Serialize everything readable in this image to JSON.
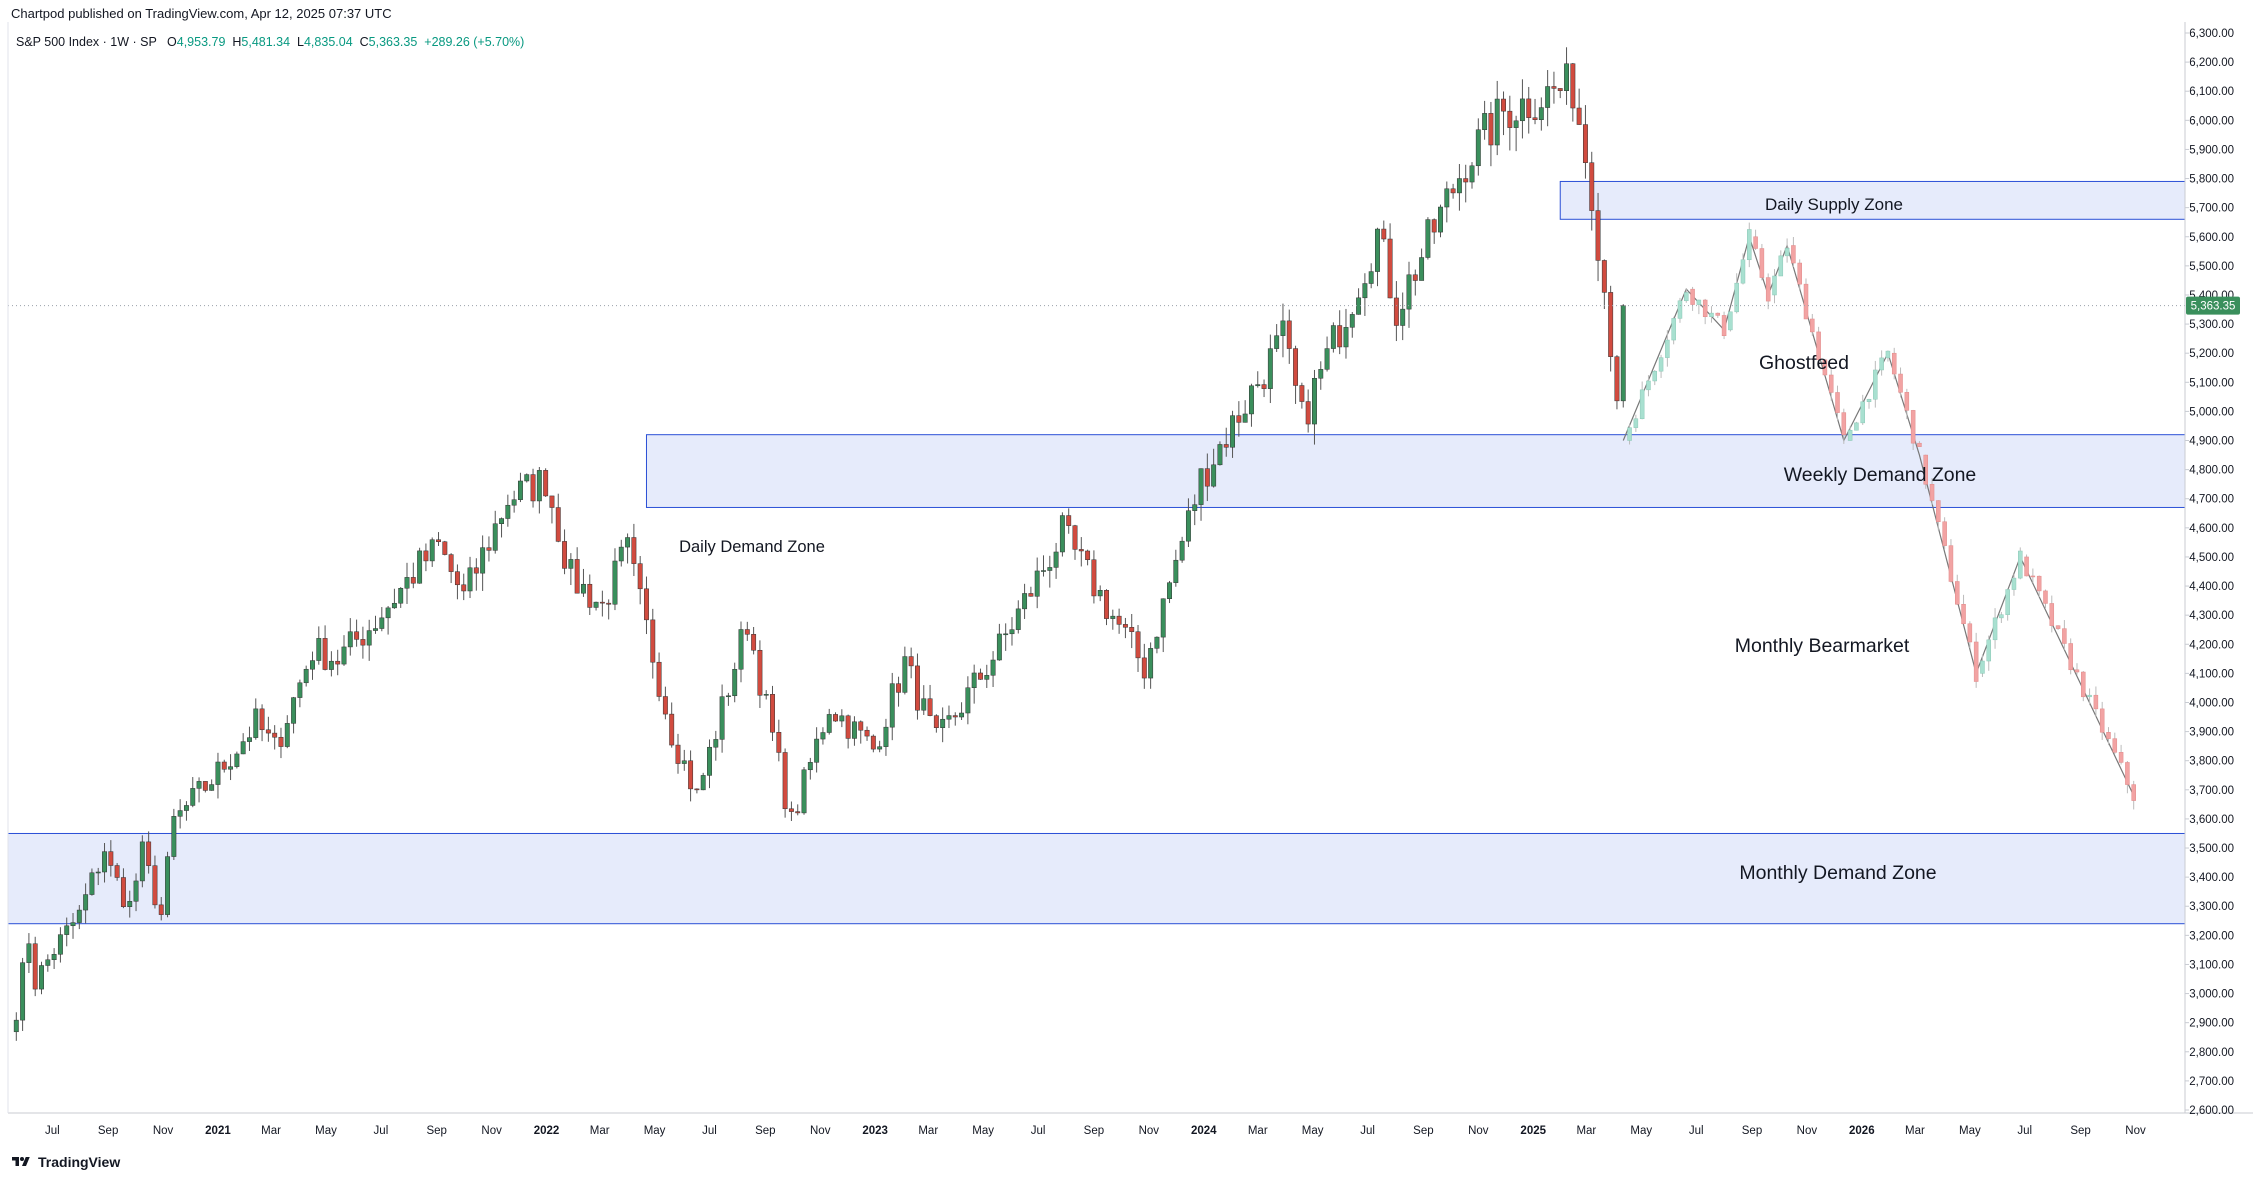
{
  "header": {
    "publisher": "Chartpod published on TradingView.com, Apr 12, 2025 07:37 UTC",
    "symbol": "S&P 500 Index · 1W · SP",
    "open_label": "O",
    "open": "4,953.79",
    "high_label": "H",
    "high": "5,481.34",
    "low_label": "L",
    "low": "4,835.04",
    "close_label": "C",
    "close": "5,363.35",
    "change": "+289.26 (+5.70%)"
  },
  "footer": {
    "brand": "TradingView"
  },
  "colors": {
    "up": "#26a69a",
    "up_body": "#3a8f5c",
    "down": "#d14b3f",
    "zone_fill": "#e6ebfb",
    "zone_stroke": "#2a4fd6",
    "price_tag": "#3a8f5c",
    "ghost_up": "#a8e0d0",
    "ghost_down": "#f2a3a3"
  },
  "chart_data": {
    "type": "candlestick",
    "title": "",
    "series_name": "S&P 500 Index · 1W · SP",
    "ylim": [
      2600,
      6300
    ],
    "y_ticks": [
      "6,300.00",
      "6,200.00",
      "6,100.00",
      "6,000.00",
      "5,900.00",
      "5,800.00",
      "5,700.00",
      "5,600.00",
      "5,500.00",
      "5,400.00",
      "5,300.00",
      "5,200.00",
      "5,100.00",
      "5,000.00",
      "4,900.00",
      "4,800.00",
      "4,700.00",
      "4,600.00",
      "4,500.00",
      "4,400.00",
      "4,300.00",
      "4,200.00",
      "4,100.00",
      "4,000.00",
      "3,900.00",
      "3,800.00",
      "3,700.00",
      "3,600.00",
      "3,500.00",
      "3,400.00",
      "3,300.00",
      "3,200.00",
      "3,100.00",
      "3,000.00",
      "2,900.00",
      "2,800.00",
      "2,700.00",
      "2,600.00"
    ],
    "y_tick_values": [
      6300,
      6200,
      6100,
      6000,
      5900,
      5800,
      5700,
      5600,
      5500,
      5400,
      5300,
      5200,
      5100,
      5000,
      4900,
      4800,
      4700,
      4600,
      4500,
      4400,
      4300,
      4200,
      4100,
      4000,
      3900,
      3800,
      3700,
      3600,
      3500,
      3400,
      3300,
      3200,
      3100,
      3000,
      2900,
      2800,
      2700,
      2600
    ],
    "x_ticks": [
      "Jul",
      "Sep",
      "Nov",
      "2021",
      "Mar",
      "May",
      "Jul",
      "Sep",
      "Nov",
      "2022",
      "Mar",
      "May",
      "Jul",
      "Sep",
      "Nov",
      "2023",
      "Mar",
      "May",
      "Jul",
      "Sep",
      "Nov",
      "2024",
      "Mar",
      "May",
      "Jul",
      "Sep",
      "Nov",
      "2025",
      "Mar",
      "May",
      "Jul",
      "Sep",
      "Nov",
      "2026",
      "Mar",
      "May",
      "Jul",
      "Sep",
      "Nov"
    ],
    "x_ticks_bold": [
      "2021",
      "2022",
      "2023",
      "2024",
      "2025",
      "2026"
    ],
    "last_price": "5,363.35",
    "last_value": 5363.35,
    "weekly_ohlc_keypoints": [
      [
        "2020-05-22",
        2950
      ],
      [
        "2020-06-05",
        3190
      ],
      [
        "2020-06-12",
        3040
      ],
      [
        "2020-07-03",
        3150
      ],
      [
        "2020-07-31",
        3270
      ],
      [
        "2020-08-28",
        3500
      ],
      [
        "2020-09-04",
        3420
      ],
      [
        "2020-09-25",
        3300
      ],
      [
        "2020-10-09",
        3480
      ],
      [
        "2020-10-30",
        3270
      ],
      [
        "2020-11-13",
        3590
      ],
      [
        "2020-12-31",
        3756
      ],
      [
        "2021-02-12",
        3930
      ],
      [
        "2021-03-05",
        3840
      ],
      [
        "2021-04-16",
        4180
      ],
      [
        "2021-05-14",
        4150
      ],
      [
        "2021-06-25",
        4280
      ],
      [
        "2021-08-13",
        4470
      ],
      [
        "2021-09-03",
        4535
      ],
      [
        "2021-10-01",
        4360
      ],
      [
        "2021-11-19",
        4700
      ],
      [
        "2021-12-31",
        4766
      ],
      [
        "2022-01-28",
        4430
      ],
      [
        "2022-03-04",
        4330
      ],
      [
        "2022-03-31",
        4530
      ],
      [
        "2022-05-20",
        3900
      ],
      [
        "2022-06-17",
        3675
      ],
      [
        "2022-08-12",
        4280
      ],
      [
        "2022-09-30",
        3585
      ],
      [
        "2022-11-11",
        3990
      ],
      [
        "2022-12-30",
        3840
      ],
      [
        "2023-02-03",
        4136
      ],
      [
        "2023-03-10",
        3860
      ],
      [
        "2023-05-19",
        4190
      ],
      [
        "2023-07-28",
        4580
      ],
      [
        "2023-10-27",
        4120
      ],
      [
        "2023-12-29",
        4770
      ],
      [
        "2024-03-29",
        5250
      ],
      [
        "2024-04-19",
        4970
      ],
      [
        "2024-07-12",
        5610
      ],
      [
        "2024-08-02",
        5350
      ],
      [
        "2024-10-18",
        5860
      ],
      [
        "2024-11-29",
        6030
      ],
      [
        "2025-01-24",
        6100
      ],
      [
        "2025-02-14",
        6115
      ],
      [
        "2025-03-07",
        5770
      ],
      [
        "2025-04-04",
        5074
      ],
      [
        "2025-04-11",
        5363
      ]
    ],
    "projection_path": [
      [
        "2025-04-11",
        4900
      ],
      [
        "2025-06-20",
        5420
      ],
      [
        "2025-08-01",
        5280
      ],
      [
        "2025-08-29",
        5600
      ],
      [
        "2025-09-19",
        5400
      ],
      [
        "2025-10-10",
        5570
      ],
      [
        "2025-12-12",
        4900
      ],
      [
        "2026-01-30",
        5200
      ],
      [
        "2026-03-06",
        4850
      ],
      [
        "2026-05-08",
        4100
      ],
      [
        "2026-06-26",
        4500
      ],
      [
        "2026-10-30",
        3680
      ]
    ],
    "zones": [
      {
        "label": "Daily Supply Zone",
        "low": 5660,
        "high": 5790,
        "from": "2025-01-31"
      },
      {
        "label": "Weekly Demand Zone",
        "low": 4670,
        "high": 4920,
        "from": "2022-04-22"
      },
      {
        "label": "Daily Demand Zone",
        "low": null,
        "high": null,
        "from": "2022-05-06"
      },
      {
        "label": "Monthly Demand Zone",
        "low": 3240,
        "high": 3550,
        "from": "2020-05-15"
      }
    ],
    "annotations": [
      "Ghostfeed",
      "Monthly Bearmarket"
    ]
  }
}
